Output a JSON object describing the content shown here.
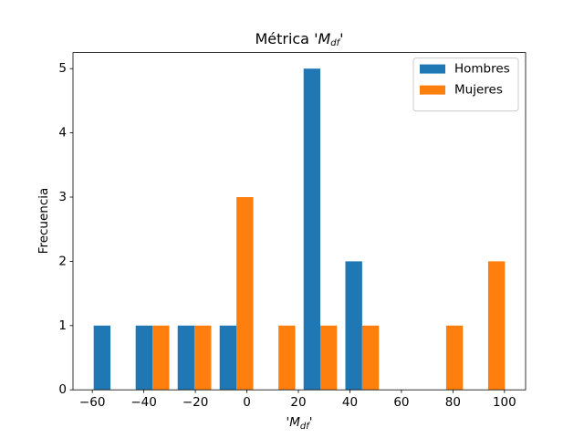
{
  "chart_data": {
    "type": "histogram",
    "title": [
      "Métrica '",
      "M",
      "df",
      "'"
    ],
    "xlabel": [
      "'",
      "M",
      "df",
      "'"
    ],
    "ylabel": "Frecuencia",
    "bins": [
      -61.1,
      -44.8,
      -28.5,
      -12.2,
      4.1,
      20.4,
      36.6,
      52.9,
      69.2,
      85.5,
      101.8
    ],
    "series": [
      {
        "name": "Hombres",
        "color": "#1f77b4",
        "values": [
          1,
          1,
          1,
          1,
          0,
          5,
          2,
          0,
          0,
          0
        ]
      },
      {
        "name": "Mujeres",
        "color": "#ff7f0e",
        "values": [
          0,
          1,
          1,
          3,
          1,
          1,
          1,
          0,
          1,
          2
        ]
      }
    ],
    "xlim": [
      -67.5,
      108.2
    ],
    "xticks": [
      {
        "value": -60,
        "label": "−60"
      },
      {
        "value": -40,
        "label": "−40"
      },
      {
        "value": -20,
        "label": "−20"
      },
      0,
      20,
      40,
      60,
      80,
      100
    ],
    "ylim": [
      0,
      5.25
    ],
    "yticks": [
      0,
      1,
      2,
      3,
      4,
      5
    ],
    "legend": "upper right"
  }
}
